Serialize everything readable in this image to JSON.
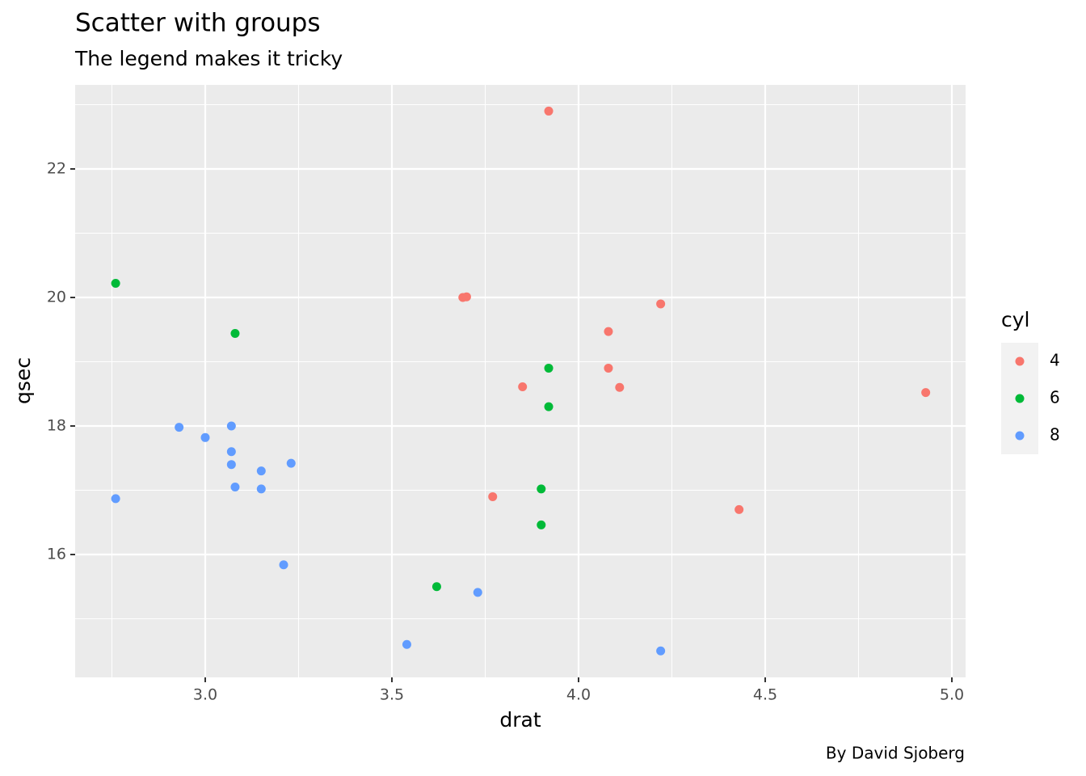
{
  "chart_data": {
    "type": "scatter",
    "title": "Scatter with groups",
    "subtitle": "The legend makes it tricky",
    "caption": "By David Sjoberg",
    "xlabel": "drat",
    "ylabel": "qsec",
    "legend_title": "cyl",
    "xlim": [
      2.6515,
      5.0368
    ],
    "ylim": [
      14.088,
      23.308
    ],
    "xticks": [
      {
        "value": 3,
        "label": "3.0"
      },
      3.5,
      {
        "value": 4,
        "label": "4.0"
      },
      4.5,
      {
        "value": 5,
        "label": "5.0"
      }
    ],
    "yticks": [
      16,
      18,
      20,
      22
    ],
    "grid": true,
    "series": [
      {
        "name": "4",
        "color": "#f8766d",
        "x": [
          3.85,
          3.69,
          3.92,
          4.08,
          4.93,
          4.22,
          3.7,
          4.08,
          4.43,
          3.77,
          4.11
        ],
        "y": [
          18.61,
          20.0,
          22.9,
          19.47,
          18.52,
          19.9,
          20.01,
          18.9,
          16.7,
          16.9,
          18.6
        ]
      },
      {
        "name": "6",
        "color": "#00ba38",
        "x": [
          3.9,
          3.9,
          3.08,
          2.76,
          3.92,
          3.92,
          3.62
        ],
        "y": [
          16.46,
          17.02,
          19.44,
          20.22,
          18.3,
          18.9,
          15.5
        ]
      },
      {
        "name": "8",
        "color": "#619cff",
        "x": [
          3.15,
          3.21,
          3.07,
          3.07,
          3.07,
          2.93,
          3.0,
          3.23,
          2.76,
          3.15,
          3.73,
          3.08,
          4.22,
          3.54
        ],
        "y": [
          17.02,
          15.84,
          17.4,
          17.6,
          18.0,
          17.98,
          17.82,
          17.42,
          16.87,
          17.3,
          15.41,
          17.05,
          14.5,
          14.6
        ]
      }
    ]
  }
}
